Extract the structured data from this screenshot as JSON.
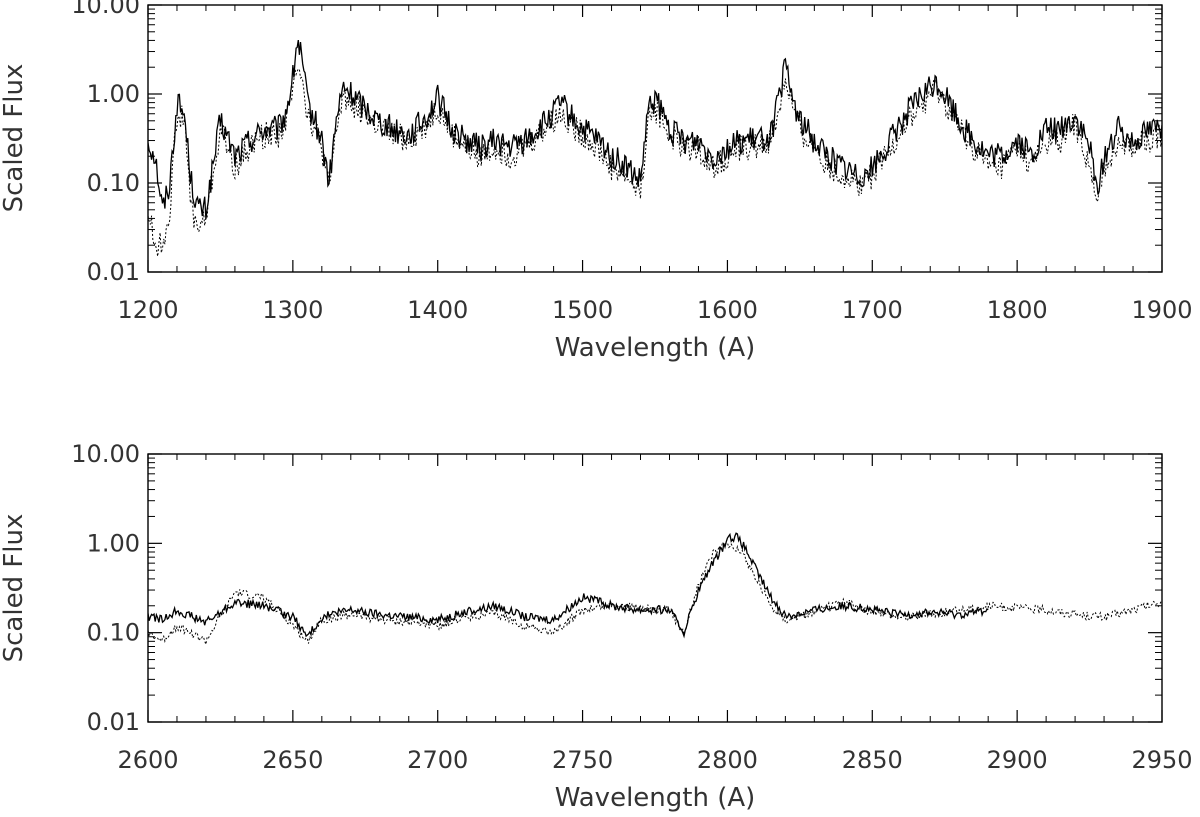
{
  "chart_data": [
    {
      "type": "line",
      "xlabel": "Wavelength (A)",
      "ylabel": "Scaled Flux",
      "xlim": [
        1200,
        1900
      ],
      "ylim": [
        0.01,
        10.0
      ],
      "yscale": "log",
      "x_ticks": [
        "1200",
        "1300",
        "1400",
        "1500",
        "1600",
        "1700",
        "1800",
        "1900"
      ],
      "y_ticks": [
        "0.01",
        "0.10",
        "1.00",
        "10.00"
      ],
      "grid": false,
      "series": [
        {
          "style": "solid",
          "x": [
            1200,
            1205,
            1210,
            1215,
            1220,
            1225,
            1230,
            1235,
            1240,
            1250,
            1260,
            1270,
            1280,
            1290,
            1295,
            1300,
            1303,
            1306,
            1310,
            1315,
            1320,
            1325,
            1330,
            1335,
            1340,
            1350,
            1360,
            1370,
            1380,
            1390,
            1400,
            1405,
            1410,
            1420,
            1430,
            1440,
            1450,
            1460,
            1470,
            1480,
            1485,
            1490,
            1500,
            1510,
            1520,
            1530,
            1540,
            1545,
            1550,
            1560,
            1570,
            1580,
            1590,
            1600,
            1610,
            1620,
            1630,
            1635,
            1640,
            1645,
            1650,
            1660,
            1670,
            1680,
            1690,
            1700,
            1710,
            1720,
            1730,
            1740,
            1745,
            1750,
            1760,
            1770,
            1780,
            1790,
            1800,
            1810,
            1820,
            1830,
            1840,
            1850,
            1855,
            1860,
            1870,
            1880,
            1890,
            1900
          ],
          "y": [
            0.3,
            0.2,
            0.05,
            0.1,
            0.8,
            0.6,
            0.1,
            0.05,
            0.05,
            0.5,
            0.2,
            0.3,
            0.4,
            0.4,
            0.6,
            1.5,
            4.0,
            2.5,
            0.8,
            0.5,
            0.3,
            0.1,
            0.5,
            1.2,
            1.0,
            0.7,
            0.5,
            0.4,
            0.35,
            0.5,
            0.9,
            0.6,
            0.4,
            0.3,
            0.25,
            0.3,
            0.25,
            0.3,
            0.4,
            0.6,
            0.8,
            0.6,
            0.4,
            0.3,
            0.2,
            0.15,
            0.1,
            0.6,
            0.9,
            0.4,
            0.3,
            0.3,
            0.2,
            0.25,
            0.3,
            0.3,
            0.35,
            0.8,
            2.0,
            0.9,
            0.5,
            0.3,
            0.2,
            0.15,
            0.12,
            0.15,
            0.25,
            0.5,
            0.8,
            1.2,
            1.3,
            1.0,
            0.5,
            0.3,
            0.2,
            0.2,
            0.3,
            0.2,
            0.4,
            0.4,
            0.55,
            0.25,
            0.08,
            0.2,
            0.4,
            0.3,
            0.4,
            0.45
          ]
        },
        {
          "style": "dotted",
          "x": [
            1200,
            1205,
            1210,
            1215,
            1220,
            1225,
            1230,
            1235,
            1240,
            1250,
            1260,
            1270,
            1280,
            1290,
            1295,
            1300,
            1303,
            1306,
            1310,
            1315,
            1320,
            1325,
            1330,
            1335,
            1340,
            1350,
            1360,
            1370,
            1380,
            1390,
            1400,
            1405,
            1410,
            1420,
            1430,
            1440,
            1450,
            1460,
            1470,
            1480,
            1485,
            1490,
            1500,
            1510,
            1520,
            1530,
            1540,
            1545,
            1550,
            1560,
            1570,
            1580,
            1590,
            1600,
            1610,
            1620,
            1630,
            1635,
            1640,
            1645,
            1650,
            1660,
            1670,
            1680,
            1690,
            1700,
            1710,
            1720,
            1730,
            1740,
            1745,
            1750,
            1760,
            1770,
            1780,
            1790,
            1800,
            1810,
            1820,
            1830,
            1840,
            1850,
            1855,
            1860,
            1870,
            1880,
            1890,
            1900
          ],
          "y": [
            0.05,
            0.02,
            0.02,
            0.05,
            0.6,
            0.5,
            0.05,
            0.03,
            0.04,
            0.4,
            0.15,
            0.25,
            0.35,
            0.35,
            0.5,
            1.0,
            2.5,
            1.8,
            0.6,
            0.4,
            0.25,
            0.08,
            0.4,
            1.0,
            0.8,
            0.6,
            0.4,
            0.35,
            0.3,
            0.4,
            0.7,
            0.5,
            0.35,
            0.25,
            0.2,
            0.25,
            0.2,
            0.25,
            0.35,
            0.5,
            0.6,
            0.5,
            0.35,
            0.25,
            0.15,
            0.12,
            0.08,
            0.5,
            0.7,
            0.35,
            0.25,
            0.25,
            0.15,
            0.2,
            0.25,
            0.25,
            0.3,
            0.6,
            1.5,
            0.7,
            0.4,
            0.25,
            0.15,
            0.12,
            0.1,
            0.12,
            0.2,
            0.4,
            0.6,
            1.0,
            1.1,
            0.8,
            0.4,
            0.25,
            0.15,
            0.15,
            0.25,
            0.15,
            0.3,
            0.3,
            0.45,
            0.15,
            0.05,
            0.15,
            0.3,
            0.25,
            0.3,
            0.35
          ]
        }
      ]
    },
    {
      "type": "line",
      "xlabel": "Wavelength (A)",
      "ylabel": "Scaled Flux",
      "xlim": [
        2600,
        2950
      ],
      "ylim": [
        0.01,
        10.0
      ],
      "yscale": "log",
      "x_ticks": [
        "2600",
        "2650",
        "2700",
        "2750",
        "2800",
        "2850",
        "2900",
        "2950"
      ],
      "y_ticks": [
        "0.01",
        "0.10",
        "1.00",
        "10.00"
      ],
      "grid": false,
      "series": [
        {
          "style": "solid",
          "x": [
            2600,
            2605,
            2610,
            2620,
            2630,
            2640,
            2650,
            2655,
            2660,
            2670,
            2680,
            2690,
            2700,
            2710,
            2720,
            2730,
            2740,
            2750,
            2760,
            2770,
            2780,
            2785,
            2790,
            2795,
            2800,
            2803,
            2806,
            2810,
            2815,
            2820,
            2830,
            2840,
            2850,
            2860,
            2870,
            2880,
            2890
          ],
          "y": [
            0.15,
            0.14,
            0.18,
            0.13,
            0.22,
            0.2,
            0.15,
            0.09,
            0.15,
            0.18,
            0.16,
            0.15,
            0.14,
            0.17,
            0.2,
            0.15,
            0.14,
            0.25,
            0.2,
            0.18,
            0.18,
            0.1,
            0.3,
            0.6,
            1.1,
            1.2,
            0.9,
            0.5,
            0.25,
            0.15,
            0.18,
            0.2,
            0.18,
            0.16,
            0.17,
            0.16,
            0.18
          ]
        },
        {
          "style": "dotted",
          "x": [
            2600,
            2605,
            2610,
            2620,
            2630,
            2640,
            2650,
            2655,
            2660,
            2670,
            2680,
            2690,
            2700,
            2710,
            2720,
            2730,
            2740,
            2750,
            2760,
            2770,
            2780,
            2785,
            2790,
            2795,
            2800,
            2803,
            2806,
            2810,
            2815,
            2820,
            2830,
            2840,
            2850,
            2860,
            2870,
            2880,
            2890,
            2900,
            2910,
            2920,
            2930,
            2940,
            2950
          ],
          "y": [
            0.1,
            0.08,
            0.12,
            0.08,
            0.28,
            0.25,
            0.12,
            0.08,
            0.14,
            0.16,
            0.14,
            0.13,
            0.12,
            0.15,
            0.16,
            0.12,
            0.1,
            0.18,
            0.2,
            0.19,
            0.18,
            0.1,
            0.35,
            0.8,
            1.0,
            0.9,
            0.7,
            0.4,
            0.2,
            0.14,
            0.17,
            0.22,
            0.17,
            0.15,
            0.16,
            0.18,
            0.2,
            0.19,
            0.18,
            0.16,
            0.15,
            0.18,
            0.22
          ]
        }
      ]
    }
  ]
}
